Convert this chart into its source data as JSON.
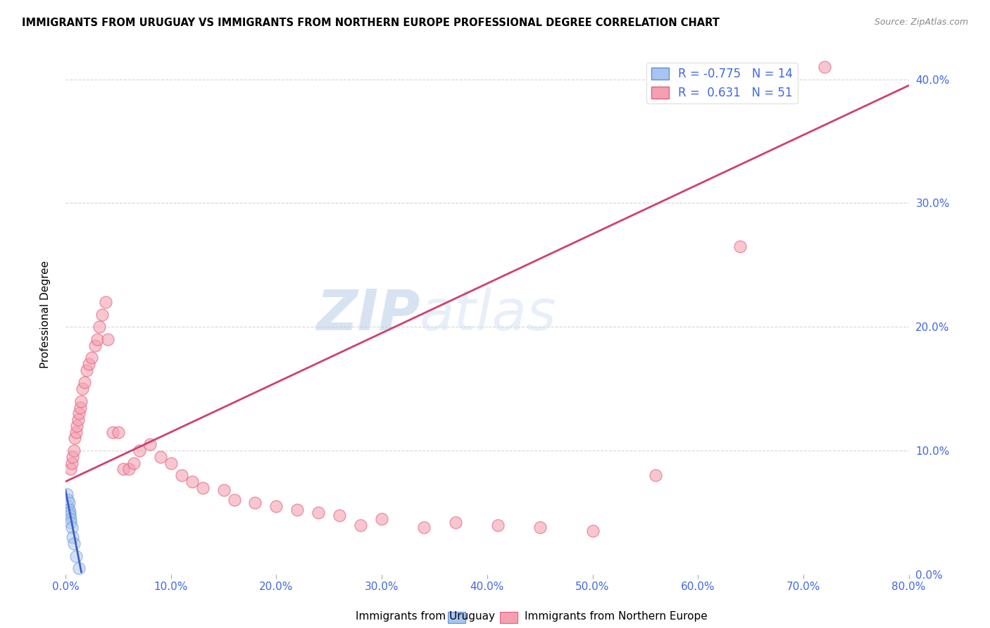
{
  "title": "IMMIGRANTS FROM URUGUAY VS IMMIGRANTS FROM NORTHERN EUROPE PROFESSIONAL DEGREE CORRELATION CHART",
  "source": "Source: ZipAtlas.com",
  "ylabel": "Professional Degree",
  "watermark_zip": "ZIP",
  "watermark_atlas": "atlas",
  "legend_line1": "R = -0.775   N = 14",
  "legend_line2": "R =  0.631   N = 51",
  "label1": "Immigrants from Uruguay",
  "label2": "Immigrants from Northern Europe",
  "xlim": [
    0.0,
    0.8
  ],
  "ylim": [
    0.0,
    0.42
  ],
  "blue_scatter_color": "#a8c4f0",
  "blue_edge_color": "#6090d0",
  "pink_scatter_color": "#f4a0b0",
  "pink_edge_color": "#e06080",
  "blue_line_color": "#4060c0",
  "pink_line_color": "#d04070",
  "tick_color": "#4169e1",
  "background": "#ffffff",
  "grid_color": "#cccccc",
  "uruguay_x": [
    0.001,
    0.002,
    0.002,
    0.003,
    0.003,
    0.004,
    0.004,
    0.005,
    0.005,
    0.006,
    0.007,
    0.008,
    0.01,
    0.013
  ],
  "uruguay_y": [
    0.065,
    0.06,
    0.055,
    0.058,
    0.052,
    0.05,
    0.048,
    0.045,
    0.042,
    0.038,
    0.03,
    0.025,
    0.015,
    0.005
  ],
  "ne_x": [
    0.005,
    0.006,
    0.007,
    0.008,
    0.009,
    0.01,
    0.011,
    0.012,
    0.013,
    0.014,
    0.015,
    0.016,
    0.018,
    0.02,
    0.022,
    0.025,
    0.028,
    0.03,
    0.032,
    0.035,
    0.038,
    0.04,
    0.045,
    0.05,
    0.055,
    0.06,
    0.065,
    0.07,
    0.08,
    0.09,
    0.1,
    0.11,
    0.12,
    0.13,
    0.15,
    0.16,
    0.18,
    0.2,
    0.22,
    0.24,
    0.26,
    0.28,
    0.3,
    0.34,
    0.37,
    0.41,
    0.45,
    0.5,
    0.56,
    0.64,
    0.72
  ],
  "ne_y": [
    0.085,
    0.09,
    0.095,
    0.1,
    0.11,
    0.115,
    0.12,
    0.125,
    0.13,
    0.135,
    0.14,
    0.15,
    0.155,
    0.165,
    0.17,
    0.175,
    0.185,
    0.19,
    0.2,
    0.21,
    0.22,
    0.19,
    0.115,
    0.115,
    0.085,
    0.085,
    0.09,
    0.1,
    0.105,
    0.095,
    0.09,
    0.08,
    0.075,
    0.07,
    0.068,
    0.06,
    0.058,
    0.055,
    0.052,
    0.05,
    0.048,
    0.04,
    0.045,
    0.038,
    0.042,
    0.04,
    0.038,
    0.035,
    0.08,
    0.265,
    0.41
  ],
  "ne_trend_x0": 0.0,
  "ne_trend_x1": 0.8,
  "ne_trend_y0": 0.075,
  "ne_trend_y1": 0.395,
  "uru_trend_x0": 0.0,
  "uru_trend_x1": 0.015,
  "uru_trend_y0": 0.068,
  "uru_trend_y1": 0.002
}
